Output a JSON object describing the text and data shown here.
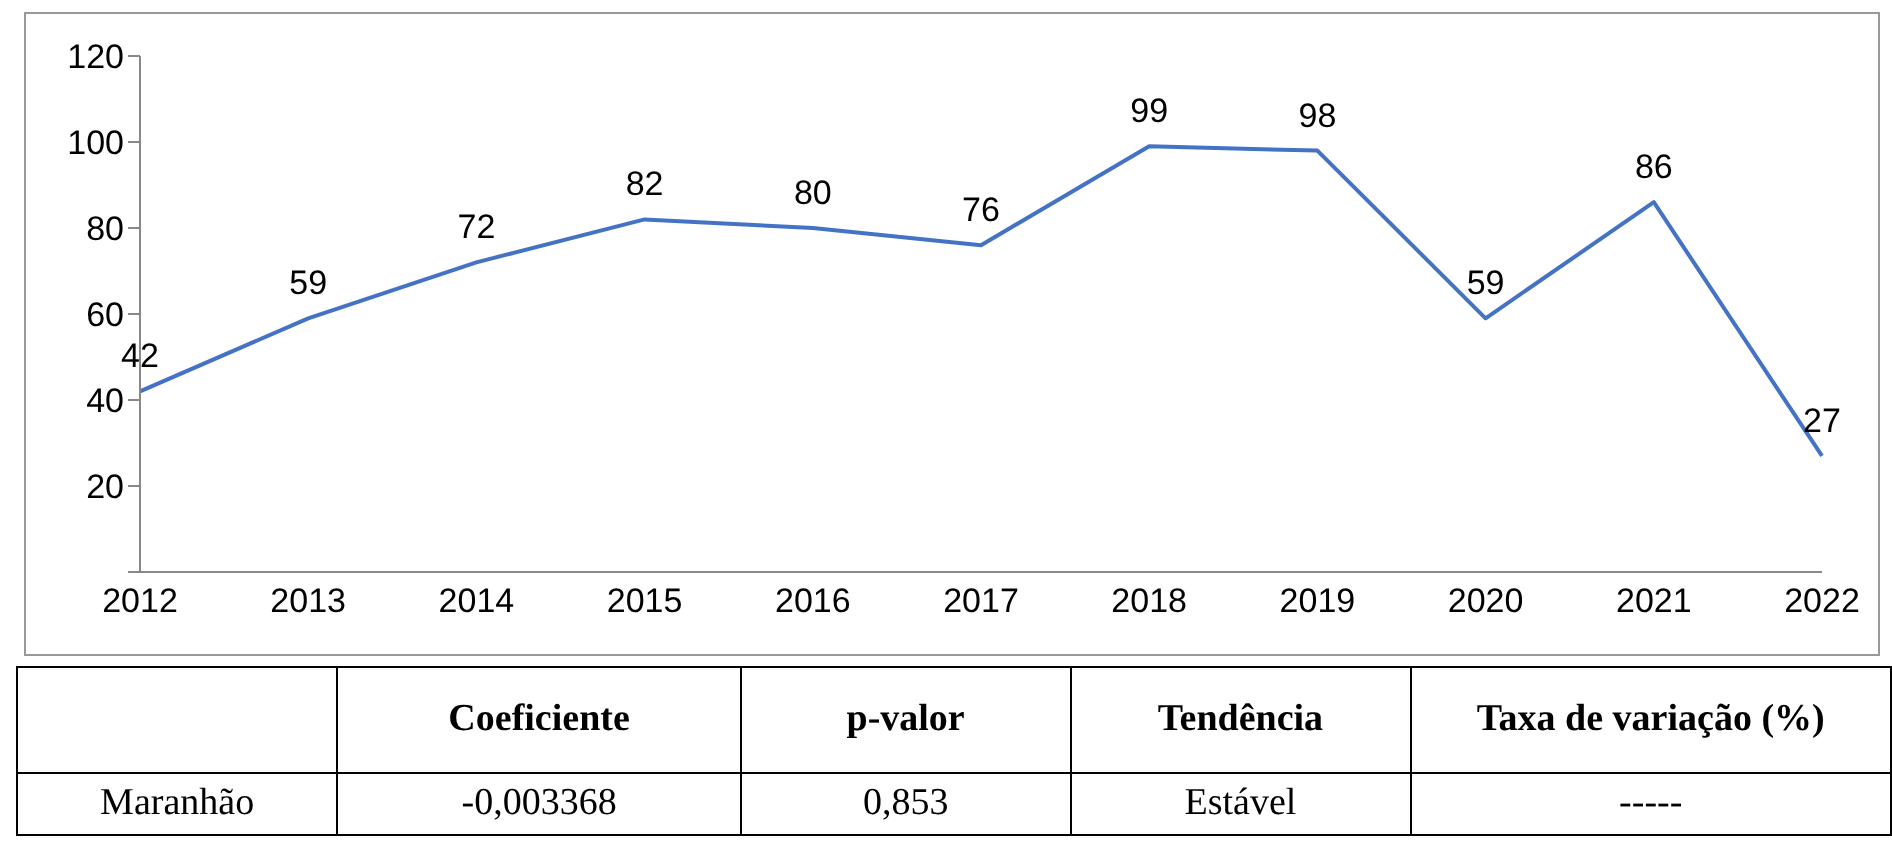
{
  "chart_data": {
    "type": "line",
    "categories": [
      "2012",
      "2013",
      "2014",
      "2015",
      "2016",
      "2017",
      "2018",
      "2019",
      "2020",
      "2021",
      "2022"
    ],
    "series": [
      {
        "color": "#4472c4",
        "values": [
          42,
          59,
          72,
          82,
          80,
          76,
          99,
          98,
          59,
          86,
          27
        ]
      }
    ],
    "ylim": [
      0,
      120
    ],
    "yticks": [
      {
        "value": 0,
        "label": null
      },
      20,
      40,
      60,
      80,
      100,
      120
    ],
    "grid": false,
    "legend": false,
    "marker": "none",
    "data_labels": true,
    "annotations": [
      "Coeficiente",
      "p-valor",
      "Tendência",
      "Taxa de variação (%)",
      "Maranhão",
      "-0,003368",
      "0,853",
      "Estável",
      "-----"
    ]
  }
}
